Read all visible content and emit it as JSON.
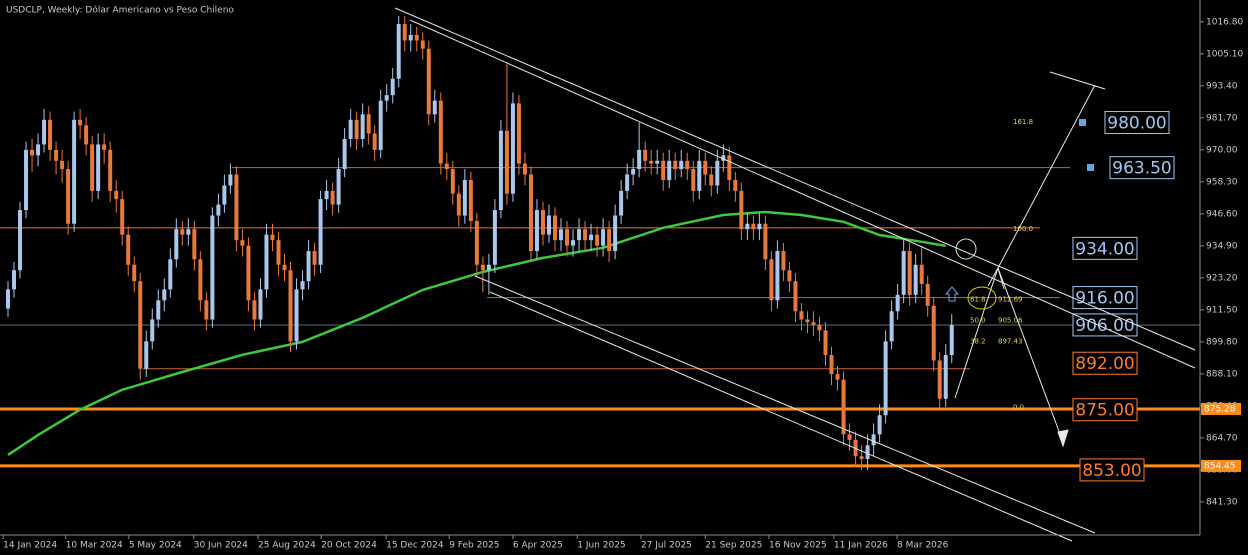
{
  "chart_data": {
    "type": "candlestick",
    "title": "USDCLP, Weekly:  Dólar Americano vs Peso Chileno",
    "up_color": "#a9c8ec",
    "down_color": "#e8783c",
    "xlim": [
      -1.33,
      198.3
    ],
    "ylim": [
      829.2,
      1024.8
    ],
    "yticks": [
      {
        "value": 1016.8,
        "label": "1016.80"
      },
      {
        "value": 1005.1,
        "label": "1005.10"
      },
      {
        "value": 993.4,
        "label": "993.40"
      },
      {
        "value": 981.7,
        "label": "981.70"
      },
      {
        "value": 970,
        "label": "970.00"
      },
      {
        "value": 958.3,
        "label": "958.30"
      },
      {
        "value": 946.6,
        "label": "946.60"
      },
      {
        "value": 934.9,
        "label": "934.90"
      },
      {
        "value": 923.2,
        "label": "923.20"
      },
      {
        "value": 911.5,
        "label": "911.50"
      },
      {
        "value": 899.8,
        "label": "899.80"
      },
      {
        "value": 888.1,
        "label": "888.10"
      },
      {
        "value": 876.4,
        "label": "876.40"
      },
      {
        "value": 864.7,
        "label": "864.70"
      },
      {
        "value": 853,
        "label": "853.00"
      },
      {
        "value": 841.3,
        "label": "841.30"
      }
    ],
    "xticks": [
      {
        "value": -0.8,
        "label": "14 Jan 2024"
      },
      {
        "value": 9.6,
        "label": "10 Mar 2024"
      },
      {
        "value": 20.1,
        "label": "5 May 2024"
      },
      {
        "value": 30.9,
        "label": "30 Jun 2024"
      },
      {
        "value": 41.6,
        "label": "25 Aug 2024"
      },
      {
        "value": 52.1,
        "label": "20 Oct 2024"
      },
      {
        "value": 62.9,
        "label": "15 Dec 2024"
      },
      {
        "value": 73.4,
        "label": "9 Feb 2025"
      },
      {
        "value": 84,
        "label": "6 Apr 2025"
      },
      {
        "value": 94.7,
        "label": "1 Jun 2025"
      },
      {
        "value": 105.3,
        "label": "27 Jul 2025"
      },
      {
        "value": 116,
        "label": "21 Sep 2025"
      },
      {
        "value": 126.6,
        "label": "16 Nov 2025"
      },
      {
        "value": 137.4,
        "label": "11 Jan 2026"
      },
      {
        "value": 147.9,
        "label": "8 Mar 2026"
      }
    ],
    "ohlc": [
      [
        912,
        922,
        909,
        919
      ],
      [
        919,
        929,
        916,
        926
      ],
      [
        926,
        951,
        923,
        948
      ],
      [
        948,
        973,
        945,
        970
      ],
      [
        970,
        974,
        962,
        968
      ],
      [
        968,
        976,
        964,
        972
      ],
      [
        972,
        985,
        969,
        981
      ],
      [
        981,
        984,
        966,
        970
      ],
      [
        970,
        973,
        961,
        966
      ],
      [
        966,
        970,
        958,
        963
      ],
      [
        963,
        966,
        939,
        943
      ],
      [
        943,
        984,
        940,
        981
      ],
      [
        981,
        985,
        974,
        979
      ],
      [
        979,
        982,
        968,
        972
      ],
      [
        972,
        975,
        951,
        955
      ],
      [
        955,
        976,
        952,
        972
      ],
      [
        972,
        976,
        965,
        970
      ],
      [
        970,
        973,
        951,
        955
      ],
      [
        955,
        959,
        947,
        952
      ],
      [
        952,
        955,
        935,
        939
      ],
      [
        939,
        942,
        924,
        928
      ],
      [
        928,
        931,
        918,
        922
      ],
      [
        922,
        925,
        886,
        890
      ],
      [
        890,
        904,
        887,
        900
      ],
      [
        900,
        912,
        897,
        908
      ],
      [
        908,
        919,
        905,
        915
      ],
      [
        915,
        923,
        911,
        919
      ],
      [
        919,
        934,
        916,
        930
      ],
      [
        930,
        945,
        927,
        941
      ],
      [
        941,
        944,
        935,
        939
      ],
      [
        939,
        945,
        935,
        941
      ],
      [
        941,
        944,
        926,
        930
      ],
      [
        930,
        933,
        911,
        915
      ],
      [
        915,
        918,
        904,
        908
      ],
      [
        908,
        949,
        905,
        946
      ],
      [
        946,
        954,
        942,
        950
      ],
      [
        950,
        961,
        947,
        957
      ],
      [
        957,
        965,
        954,
        961
      ],
      [
        961,
        964,
        933,
        937
      ],
      [
        937,
        941,
        931,
        935
      ],
      [
        935,
        938,
        911,
        915
      ],
      [
        915,
        918,
        904,
        908
      ],
      [
        908,
        923,
        905,
        919
      ],
      [
        919,
        943,
        916,
        939
      ],
      [
        939,
        943,
        933,
        937
      ],
      [
        937,
        940,
        924,
        928
      ],
      [
        928,
        932,
        922,
        926
      ],
      [
        926,
        929,
        896,
        900
      ],
      [
        900,
        923,
        897,
        919
      ],
      [
        919,
        926,
        915,
        922
      ],
      [
        922,
        937,
        919,
        933
      ],
      [
        933,
        936,
        924,
        928
      ],
      [
        928,
        955,
        925,
        952
      ],
      [
        952,
        959,
        948,
        955
      ],
      [
        955,
        958,
        946,
        950
      ],
      [
        950,
        967,
        947,
        963
      ],
      [
        963,
        978,
        960,
        974
      ],
      [
        974,
        985,
        971,
        981
      ],
      [
        981,
        984,
        970,
        974
      ],
      [
        974,
        987,
        971,
        983
      ],
      [
        983,
        986,
        972,
        976
      ],
      [
        976,
        979,
        966,
        970
      ],
      [
        970,
        992,
        967,
        988
      ],
      [
        988,
        994,
        984,
        990
      ],
      [
        990,
        1000,
        987,
        996
      ],
      [
        996,
        1019,
        993,
        1016
      ],
      [
        1016,
        1019,
        1006,
        1010
      ],
      [
        1010,
        1016,
        1006,
        1012
      ],
      [
        1012,
        1015,
        1006,
        1010
      ],
      [
        1010,
        1013,
        1003,
        1007
      ],
      [
        1007,
        1010,
        979,
        983
      ],
      [
        983,
        992,
        980,
        988
      ],
      [
        988,
        991,
        961,
        965
      ],
      [
        965,
        969,
        959,
        963
      ],
      [
        963,
        966,
        950,
        954
      ],
      [
        954,
        957,
        942,
        946
      ],
      [
        946,
        963,
        943,
        959
      ],
      [
        959,
        962,
        940,
        944
      ],
      [
        944,
        947,
        924,
        928
      ],
      [
        928,
        931,
        918,
        926
      ],
      [
        926,
        932,
        917,
        928
      ],
      [
        928,
        952,
        925,
        948
      ],
      [
        948,
        981,
        945,
        977
      ],
      [
        977,
        1002,
        950,
        954
      ],
      [
        954,
        991,
        951,
        987
      ],
      [
        987,
        990,
        961,
        965
      ],
      [
        965,
        969,
        957,
        961
      ],
      [
        961,
        964,
        929,
        933
      ],
      [
        933,
        952,
        930,
        948
      ],
      [
        948,
        951,
        935,
        939
      ],
      [
        939,
        950,
        936,
        946
      ],
      [
        946,
        949,
        933,
        937
      ],
      [
        937,
        945,
        933,
        941
      ],
      [
        941,
        944,
        931,
        935
      ],
      [
        935,
        941,
        931,
        937
      ],
      [
        937,
        945,
        933,
        941
      ],
      [
        941,
        944,
        933,
        937
      ],
      [
        937,
        943,
        933,
        939
      ],
      [
        939,
        942,
        931,
        935
      ],
      [
        935,
        945,
        931,
        941
      ],
      [
        941,
        944,
        929,
        933
      ],
      [
        933,
        950,
        930,
        946
      ],
      [
        946,
        959,
        943,
        955
      ],
      [
        955,
        965,
        952,
        961
      ],
      [
        961,
        967,
        957,
        963
      ],
      [
        963,
        980,
        960,
        970
      ],
      [
        970,
        973,
        962,
        966
      ],
      [
        966,
        970,
        961,
        965
      ],
      [
        965,
        970,
        961,
        966
      ],
      [
        966,
        969,
        955,
        959
      ],
      [
        959,
        970,
        956,
        966
      ],
      [
        966,
        969,
        959,
        963
      ],
      [
        963,
        970,
        960,
        966
      ],
      [
        966,
        969,
        959,
        963
      ],
      [
        963,
        966,
        951,
        955
      ],
      [
        955,
        970,
        952,
        966
      ],
      [
        966,
        969,
        957,
        961
      ],
      [
        961,
        964,
        953,
        957
      ],
      [
        957,
        970,
        954,
        966
      ],
      [
        966,
        972,
        962,
        968
      ],
      [
        968,
        971,
        955,
        959
      ],
      [
        959,
        962,
        951,
        955
      ],
      [
        955,
        958,
        937,
        941
      ],
      [
        941,
        947,
        937,
        943
      ],
      [
        943,
        946,
        937,
        941
      ],
      [
        941,
        947,
        937,
        943
      ],
      [
        943,
        946,
        926,
        930
      ],
      [
        930,
        933,
        911,
        915
      ],
      [
        915,
        937,
        912,
        933
      ],
      [
        933,
        936,
        922,
        926
      ],
      [
        926,
        929,
        918,
        922
      ],
      [
        922,
        925,
        907,
        911
      ],
      [
        911,
        914,
        904,
        908
      ],
      [
        908,
        911,
        903,
        907
      ],
      [
        907,
        911,
        902,
        906
      ],
      [
        906,
        909,
        900,
        904
      ],
      [
        904,
        907,
        891,
        895
      ],
      [
        895,
        898,
        884,
        888
      ],
      [
        888,
        891,
        882,
        886
      ],
      [
        886,
        889,
        862,
        866
      ],
      [
        866,
        870,
        860,
        864
      ],
      [
        864,
        867,
        854,
        858
      ],
      [
        858,
        862,
        853,
        857
      ],
      [
        857,
        866,
        853,
        862
      ],
      [
        862,
        870,
        858,
        866
      ],
      [
        866,
        877,
        863,
        873
      ],
      [
        873,
        904,
        870,
        900
      ],
      [
        900,
        915,
        897,
        911
      ],
      [
        911,
        921,
        908,
        917
      ],
      [
        917,
        937,
        914,
        933
      ],
      [
        933,
        936,
        913,
        917
      ],
      [
        917,
        932,
        914,
        928
      ],
      [
        928,
        935,
        917,
        921
      ],
      [
        921,
        924,
        909,
        913
      ],
      [
        913,
        916,
        889,
        893
      ],
      [
        893,
        896,
        875,
        879
      ],
      [
        879,
        899,
        876,
        895
      ],
      [
        895,
        910,
        892,
        906
      ]
    ],
    "ma": {
      "color": "#3cc83c",
      "x": [
        0,
        5,
        12,
        19,
        29,
        39,
        49,
        59,
        69,
        79,
        89,
        99,
        109,
        119,
        126,
        132,
        139,
        145,
        152,
        156
      ],
      "values": [
        858.5,
        865.8,
        875,
        882.3,
        888.8,
        895.1,
        899.8,
        908.6,
        918.8,
        925.4,
        930.5,
        934.2,
        941.5,
        946.2,
        947.3,
        946.2,
        943.7,
        938.9,
        936.4,
        934.9
      ]
    },
    "hlines": [
      {
        "value": 963.5,
        "color": "#c8643c"
      },
      {
        "value": 941.5,
        "color": "#e8783c"
      },
      {
        "value": 916,
        "color": "#c8643c"
      },
      {
        "value": 890,
        "color": "#c8643c"
      },
      {
        "value": 906,
        "color": "#5a6a7a"
      }
    ],
    "price_tags": [
      875.28,
      854.45
    ],
    "tag_color": "#ff8c1a",
    "levels": [
      {
        "value": 980,
        "label": "980.00",
        "color": "#9ec8f0"
      },
      {
        "value": 963.5,
        "label": "963.50",
        "color": "#9ec8f0"
      },
      {
        "value": 934,
        "label": "934.00",
        "color": "#9ec8f0"
      },
      {
        "value": 916,
        "label": "916.00",
        "color": "#9ec8f0"
      },
      {
        "value": 906,
        "label": "906.00",
        "color": "#9ec8f0"
      },
      {
        "value": 892,
        "label": "892.00",
        "color": "#ff7a2a"
      },
      {
        "value": 875,
        "label": "875.00",
        "color": "#ff7a2a"
      },
      {
        "value": 853,
        "label": "853.00",
        "color": "#ff7a2a"
      }
    ],
    "fib": [
      {
        "ratio": "161.8",
        "value": 979.5
      },
      {
        "ratio": "100.0",
        "value": 940.3
      },
      {
        "ratio": "61.8",
        "price": 912.69
      },
      {
        "ratio": "50.0",
        "price": 905.06
      },
      {
        "ratio": "38.2",
        "price": 897.43
      },
      {
        "ratio": "0.0",
        "value": 875
      }
    ],
    "fib_color": "#e6d23c"
  }
}
